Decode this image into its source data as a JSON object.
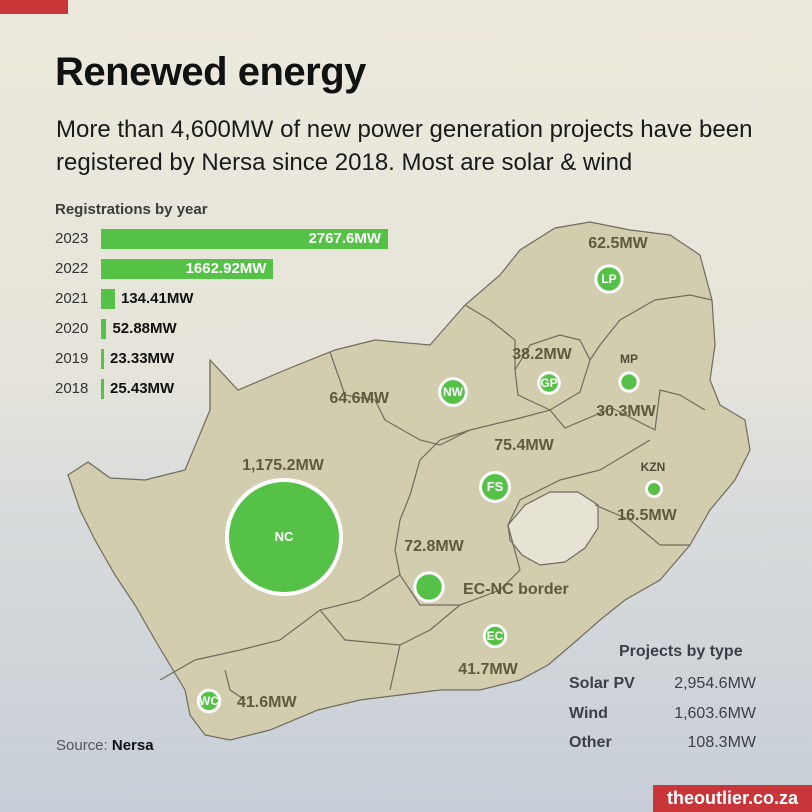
{
  "colors": {
    "accent": "#c9363a",
    "bubble": "#55c247",
    "bar": "#55c247",
    "map_fill": "#d1cdae",
    "lesotho": "#e6e3d4"
  },
  "title": "Renewed energy",
  "subtitle": "More than 4,600MW of new power generation projects have been registered by Nersa since 2018. Most are solar & wind",
  "registrations": {
    "heading": "Registrations by year",
    "items": [
      {
        "year": "2023",
        "value": 2767.6,
        "label": "2767.6MW"
      },
      {
        "year": "2022",
        "value": 1662.92,
        "label": "1662.92MW"
      },
      {
        "year": "2021",
        "value": 134.41,
        "label": "134.41MW"
      },
      {
        "year": "2020",
        "value": 52.88,
        "label": "52.88MW"
      },
      {
        "year": "2019",
        "value": 23.33,
        "label": "23.33MW"
      },
      {
        "year": "2018",
        "value": 25.43,
        "label": "25.43MW"
      }
    ]
  },
  "provinces": [
    {
      "code": "LP",
      "value": 62.5,
      "label": "62.5MW"
    },
    {
      "code": "GP",
      "value": 38.2,
      "label": "38.2MW"
    },
    {
      "code": "MP",
      "value": 30.3,
      "label": "30.3MW"
    },
    {
      "code": "NW",
      "value": 64.6,
      "label": "64.6MW"
    },
    {
      "code": "NC",
      "value": 1175.2,
      "label": "1,175.2MW"
    },
    {
      "code": "FS",
      "value": 75.4,
      "label": "75.4MW"
    },
    {
      "code": "KZN",
      "value": 16.5,
      "label": "16.5MW"
    },
    {
      "code": "",
      "name": "EC-NC border",
      "value": 72.8,
      "label": "72.8MW"
    },
    {
      "code": "EC",
      "value": 41.7,
      "label": "41.7MW"
    },
    {
      "code": "WC",
      "value": 41.6,
      "label": "41.6MW"
    }
  ],
  "projects_by_type": {
    "heading": "Projects by type",
    "items": [
      {
        "name": "Solar PV",
        "value": "2,954.6MW"
      },
      {
        "name": "Wind",
        "value": "1,603.6MW"
      },
      {
        "name": "Other",
        "value": "108.3MW"
      }
    ]
  },
  "source": {
    "prefix": "Source:",
    "name": "Nersa"
  },
  "brand": "theoutlier.co.za"
}
